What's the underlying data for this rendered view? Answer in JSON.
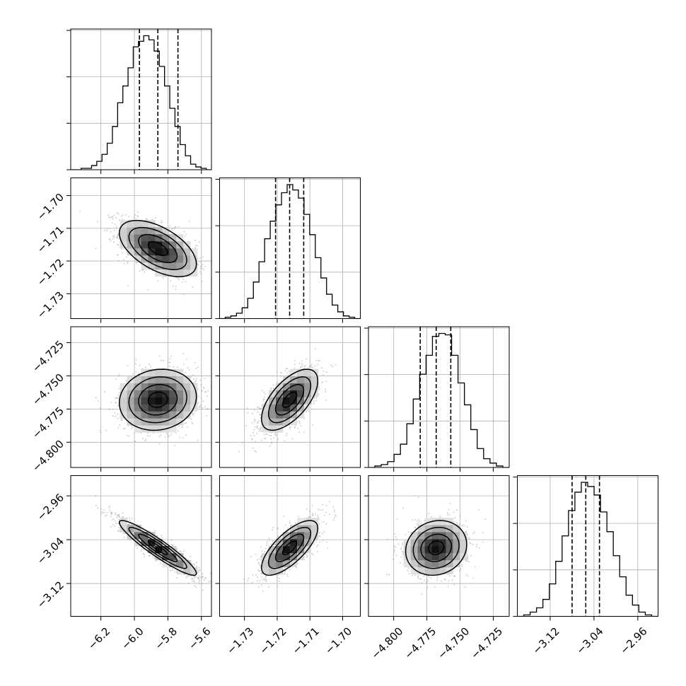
{
  "chart_data": {
    "type": "corner",
    "parameters": [
      {
        "range": [
          -6.38,
          -5.54
        ],
        "ticks": [
          -6.2,
          -6.0,
          -5.8,
          -5.6
        ],
        "tick_labels": [
          "−6.2",
          "−6.0",
          "−5.8",
          "−5.6"
        ],
        "quantiles": [
          -5.97,
          -5.86,
          -5.74
        ],
        "hist": [
          0.0,
          0.0,
          0.01,
          0.01,
          0.03,
          0.06,
          0.11,
          0.19,
          0.31,
          0.48,
          0.6,
          0.73,
          0.88,
          0.92,
          0.96,
          0.93,
          0.85,
          0.74,
          0.6,
          0.44,
          0.31,
          0.18,
          0.1,
          0.04,
          0.02,
          0.01,
          0.0
        ]
      },
      {
        "range": [
          -1.7376,
          -1.6946
        ],
        "ticks": [
          -1.73,
          -1.72,
          -1.71,
          -1.7
        ],
        "tick_labels": [
          "−1.73",
          "−1.72",
          "−1.71",
          "−1.70"
        ],
        "quantiles": [
          -1.7205,
          -1.7162,
          -1.7119
        ],
        "hist": [
          0.0,
          0.01,
          0.02,
          0.04,
          0.08,
          0.15,
          0.27,
          0.42,
          0.59,
          0.72,
          0.84,
          0.93,
          0.99,
          0.95,
          0.89,
          0.77,
          0.62,
          0.45,
          0.3,
          0.18,
          0.1,
          0.05,
          0.02,
          0.01,
          0.0
        ]
      },
      {
        "range": [
          -4.819,
          -4.713
        ],
        "ticks": [
          -4.8,
          -4.775,
          -4.75,
          -4.725
        ],
        "tick_labels": [
          "−4.800",
          "−4.775",
          "−4.750",
          "−4.725"
        ],
        "quantiles": [
          -4.78,
          -4.768,
          -4.757
        ],
        "hist": [
          0.0,
          0.01,
          0.02,
          0.04,
          0.09,
          0.16,
          0.3,
          0.47,
          0.64,
          0.77,
          0.9,
          0.92,
          0.91,
          0.77,
          0.58,
          0.43,
          0.26,
          0.13,
          0.06,
          0.03,
          0.01,
          0.0
        ]
      },
      {
        "range": [
          -3.18,
          -2.923
        ],
        "ticks": [
          -3.12,
          -3.04,
          -2.96
        ],
        "tick_labels": [
          "−3.12",
          "−3.04",
          "−2.96"
        ],
        "quantiles": [
          -3.08,
          -3.055,
          -3.03
        ],
        "hist": [
          0.0,
          0.01,
          0.03,
          0.06,
          0.12,
          0.23,
          0.39,
          0.57,
          0.75,
          0.88,
          0.95,
          0.92,
          0.86,
          0.74,
          0.6,
          0.43,
          0.28,
          0.15,
          0.08,
          0.03,
          0.01,
          0.0
        ]
      }
    ],
    "correlations": [
      {
        "row": 1,
        "col": 0,
        "rho": -0.55
      },
      {
        "row": 2,
        "col": 0,
        "rho": 0.1
      },
      {
        "row": 2,
        "col": 1,
        "rho": 0.62
      },
      {
        "row": 3,
        "col": 0,
        "rho": -0.93
      },
      {
        "row": 3,
        "col": 1,
        "rho": 0.72
      },
      {
        "row": 3,
        "col": 2,
        "rho": 0.12
      }
    ],
    "contour_levels_sigma": [
      0.5,
      1.0,
      1.5,
      2.0
    ],
    "grid": true,
    "colors": {
      "line": "#000000",
      "grid": "#b0b0b0",
      "points": "#9a9a9a",
      "density": "#000000"
    }
  }
}
